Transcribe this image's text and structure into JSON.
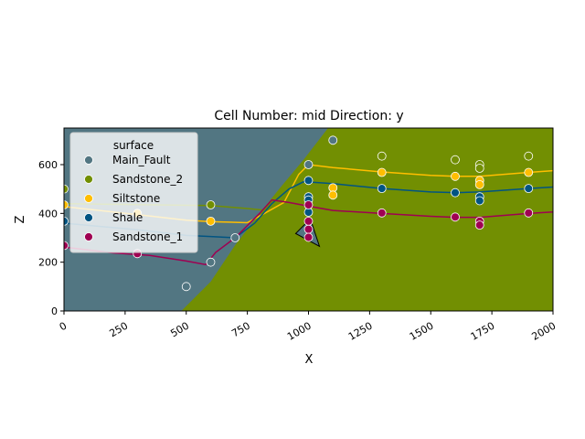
{
  "chart_data": {
    "type": "scatter",
    "title": "Cell Number: mid Direction: y",
    "xlabel": "X",
    "ylabel": "Z",
    "xlim": [
      0,
      2000
    ],
    "ylim": [
      0,
      750
    ],
    "x_ticks": [
      0,
      250,
      500,
      750,
      1000,
      1250,
      1500,
      1750,
      2000
    ],
    "y_ticks": [
      0,
      200,
      400,
      600
    ],
    "grid": false,
    "legend": {
      "title": "surface",
      "placement": "upper-left",
      "entries": [
        {
          "label": "Main_Fault",
          "color": "#527682"
        },
        {
          "label": "Sandstone_2",
          "color": "#728f02"
        },
        {
          "label": "Siltstone",
          "color": "#ffbe00"
        },
        {
          "label": "Shale",
          "color": "#015482"
        },
        {
          "label": "Sandstone_1",
          "color": "#9f0052"
        }
      ]
    },
    "regions": {
      "fault_block_color": "#527682",
      "sandstone_2_color": "#728f02",
      "fault_trace_top": [
        [
          1080,
          750
        ],
        [
          980,
          620
        ],
        [
          880,
          500
        ],
        [
          800,
          400
        ],
        [
          700,
          270
        ],
        [
          600,
          120
        ],
        [
          480,
          0
        ]
      ]
    },
    "points": [
      {
        "surface": "Main_Fault",
        "x": 1100,
        "y": 700
      },
      {
        "surface": "Main_Fault",
        "x": 600,
        "y": 200
      },
      {
        "surface": "Main_Fault",
        "x": 500,
        "y": 100
      },
      {
        "surface": "Main_Fault",
        "x": 700,
        "y": 300
      },
      {
        "surface": "Main_Fault",
        "x": 1000,
        "y": 600
      },
      {
        "surface": "Sandstone_2",
        "x": 0,
        "y": 500
      },
      {
        "surface": "Sandstone_2",
        "x": 600,
        "y": 435
      },
      {
        "surface": "Sandstone_2",
        "x": 1300,
        "y": 635
      },
      {
        "surface": "Sandstone_2",
        "x": 1600,
        "y": 620
      },
      {
        "surface": "Sandstone_2",
        "x": 1700,
        "y": 600
      },
      {
        "surface": "Sandstone_2",
        "x": 1700,
        "y": 585
      },
      {
        "surface": "Sandstone_2",
        "x": 1900,
        "y": 635
      },
      {
        "surface": "Siltstone",
        "x": 0,
        "y": 435
      },
      {
        "surface": "Siltstone",
        "x": 300,
        "y": 400
      },
      {
        "surface": "Siltstone",
        "x": 600,
        "y": 368
      },
      {
        "surface": "Siltstone",
        "x": 1100,
        "y": 505
      },
      {
        "surface": "Siltstone",
        "x": 1100,
        "y": 475
      },
      {
        "surface": "Siltstone",
        "x": 1300,
        "y": 568
      },
      {
        "surface": "Siltstone",
        "x": 1600,
        "y": 552
      },
      {
        "surface": "Siltstone",
        "x": 1700,
        "y": 535
      },
      {
        "surface": "Siltstone",
        "x": 1700,
        "y": 518
      },
      {
        "surface": "Siltstone",
        "x": 1900,
        "y": 568
      },
      {
        "surface": "Shale",
        "x": 0,
        "y": 368
      },
      {
        "surface": "Shale",
        "x": 1000,
        "y": 535
      },
      {
        "surface": "Shale",
        "x": 1000,
        "y": 468
      },
      {
        "surface": "Shale",
        "x": 1000,
        "y": 455
      },
      {
        "surface": "Shale",
        "x": 1000,
        "y": 405
      },
      {
        "surface": "Shale",
        "x": 1300,
        "y": 502
      },
      {
        "surface": "Shale",
        "x": 1600,
        "y": 485
      },
      {
        "surface": "Shale",
        "x": 1700,
        "y": 468
      },
      {
        "surface": "Shale",
        "x": 1700,
        "y": 452
      },
      {
        "surface": "Shale",
        "x": 1900,
        "y": 502
      },
      {
        "surface": "Sandstone_1",
        "x": 0,
        "y": 268
      },
      {
        "surface": "Sandstone_1",
        "x": 300,
        "y": 235
      },
      {
        "surface": "Sandstone_1",
        "x": 1000,
        "y": 435
      },
      {
        "surface": "Sandstone_1",
        "x": 1000,
        "y": 368
      },
      {
        "surface": "Sandstone_1",
        "x": 1000,
        "y": 335
      },
      {
        "surface": "Sandstone_1",
        "x": 1000,
        "y": 302
      },
      {
        "surface": "Sandstone_1",
        "x": 1300,
        "y": 402
      },
      {
        "surface": "Sandstone_1",
        "x": 1600,
        "y": 385
      },
      {
        "surface": "Sandstone_1",
        "x": 1700,
        "y": 368
      },
      {
        "surface": "Sandstone_1",
        "x": 1700,
        "y": 352
      },
      {
        "surface": "Sandstone_1",
        "x": 1900,
        "y": 402
      }
    ],
    "lines": [
      {
        "surface": "Sandstone_2",
        "color": "#728f02",
        "points": [
          [
            0,
            440
          ],
          [
            300,
            436
          ],
          [
            600,
            432
          ],
          [
            750,
            420
          ],
          [
            850,
            410
          ]
        ]
      },
      {
        "surface": "Siltstone",
        "color": "#ffbe00",
        "points": [
          [
            0,
            428
          ],
          [
            300,
            395
          ],
          [
            500,
            372
          ],
          [
            600,
            366
          ],
          [
            750,
            362
          ],
          [
            820,
            400
          ],
          [
            900,
            445
          ],
          [
            960,
            560
          ],
          [
            1000,
            600
          ],
          [
            1100,
            588
          ],
          [
            1300,
            570
          ],
          [
            1500,
            556
          ],
          [
            1600,
            552
          ],
          [
            1700,
            552
          ],
          [
            1800,
            560
          ],
          [
            1900,
            568
          ],
          [
            2000,
            575
          ]
        ]
      },
      {
        "surface": "Shale",
        "color": "#015482",
        "points": [
          [
            0,
            360
          ],
          [
            300,
            333
          ],
          [
            500,
            310
          ],
          [
            600,
            305
          ],
          [
            700,
            300
          ],
          [
            780,
            360
          ],
          [
            850,
            440
          ],
          [
            920,
            500
          ],
          [
            980,
            530
          ],
          [
            1100,
            522
          ],
          [
            1300,
            502
          ],
          [
            1500,
            488
          ],
          [
            1600,
            485
          ],
          [
            1700,
            488
          ],
          [
            1800,
            495
          ],
          [
            1900,
            502
          ],
          [
            2000,
            508
          ]
        ]
      },
      {
        "surface": "Sandstone_1",
        "color": "#9f0052",
        "points": [
          [
            0,
            262
          ],
          [
            200,
            238
          ],
          [
            350,
            228
          ],
          [
            500,
            205
          ],
          [
            580,
            190
          ],
          [
            620,
            240
          ],
          [
            700,
            300
          ],
          [
            800,
            400
          ],
          [
            850,
            455
          ],
          [
            920,
            445
          ],
          [
            1000,
            430
          ],
          [
            1100,
            412
          ],
          [
            1300,
            400
          ],
          [
            1500,
            388
          ],
          [
            1600,
            384
          ],
          [
            1700,
            384
          ],
          [
            1800,
            392
          ],
          [
            1900,
            400
          ],
          [
            2000,
            406
          ]
        ]
      }
    ],
    "orientation_arrows": [
      {
        "surface": "Main_Fault",
        "x": 1000,
        "y": 310,
        "dx": 40,
        "dy": 15
      }
    ]
  }
}
